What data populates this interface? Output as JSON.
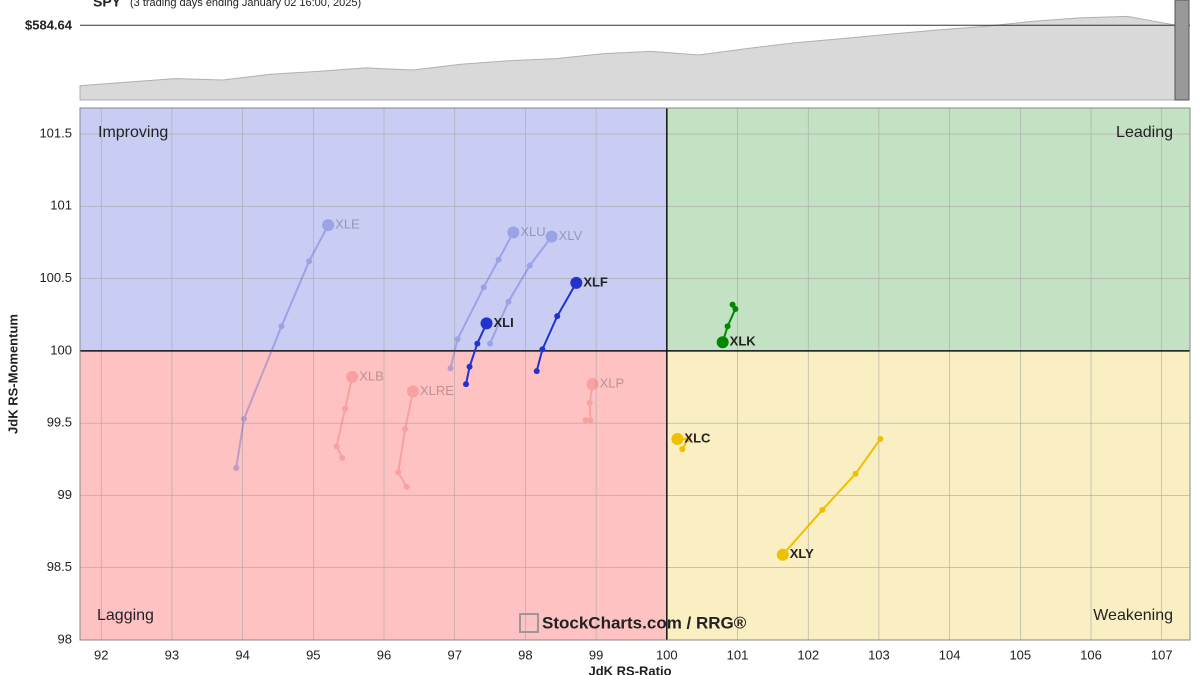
{
  "chart_data": {
    "type": "scatter",
    "header": {
      "symbol": "SPY",
      "period": "(3 trading days ending January 02 16:00, 2025)",
      "price_label": "$584.64",
      "price": 584.64,
      "values": [
        500,
        505,
        510,
        508,
        516,
        520,
        525,
        522,
        530,
        535,
        538,
        545,
        548,
        543,
        552,
        560,
        566,
        572,
        578,
        583,
        590,
        595,
        597,
        585
      ],
      "ylim": [
        480,
        620
      ],
      "color": "#d9d9d9"
    },
    "xlabel": "JdK RS-Ratio",
    "ylabel": "JdK RS-Momentum",
    "xlim": [
      91.7,
      107.4
    ],
    "ylim": [
      98,
      101.68
    ],
    "xticks": [
      92,
      93,
      94,
      95,
      96,
      97,
      98,
      99,
      100,
      101,
      102,
      103,
      104,
      105,
      106,
      107
    ],
    "yticks": [
      98,
      98.5,
      99,
      99.5,
      100,
      100.5,
      101,
      101.5
    ],
    "grid": true,
    "quadrants": [
      {
        "name": "Improving",
        "position": "top-left",
        "color": "#c9cdf3",
        "text_color": "#3a4fd0"
      },
      {
        "name": "Leading",
        "position": "top-right",
        "color": "#c3e2c3",
        "text_color": "#1a8a1a"
      },
      {
        "name": "Lagging",
        "position": "bottom-left",
        "color": "#ffc2c2",
        "text_color": "#e02020"
      },
      {
        "name": "Weakening",
        "position": "bottom-right",
        "color": "#faefc2",
        "text_color": "#e8b800"
      }
    ],
    "watermark": "StockCharts.com / RRG®",
    "series": [
      {
        "name": "XLE",
        "color": "#3344cc",
        "faded": true,
        "x": [
          93.91,
          94.02,
          94.55,
          94.94,
          95.21
        ],
        "values": [
          99.19,
          99.53,
          100.17,
          100.62,
          100.87
        ]
      },
      {
        "name": "XLU",
        "color": "#3344cc",
        "faded": true,
        "x": [
          96.94,
          97.04,
          97.41,
          97.62,
          97.83
        ],
        "values": [
          99.88,
          100.08,
          100.44,
          100.63,
          100.82
        ]
      },
      {
        "name": "XLV",
        "color": "#3344cc",
        "faded": true,
        "x": [
          97.5,
          97.76,
          98.06,
          98.37
        ],
        "values": [
          100.05,
          100.34,
          100.59,
          100.79
        ]
      },
      {
        "name": "XLF",
        "color": "#2233cc",
        "faded": false,
        "x": [
          98.16,
          98.24,
          98.45,
          98.72
        ],
        "values": [
          99.86,
          100.01,
          100.24,
          100.47
        ]
      },
      {
        "name": "XLI",
        "color": "#2233cc",
        "faded": false,
        "x": [
          97.16,
          97.21,
          97.32,
          97.45
        ],
        "values": [
          99.77,
          99.89,
          100.05,
          100.19
        ]
      },
      {
        "name": "XLK",
        "color": "#008800",
        "faded": false,
        "x": [
          100.93,
          100.97,
          100.86,
          100.79
        ],
        "values": [
          100.32,
          100.29,
          100.17,
          100.06
        ]
      },
      {
        "name": "XLB",
        "color": "#ee5555",
        "faded": true,
        "x": [
          95.41,
          95.33,
          95.45,
          95.55
        ],
        "values": [
          99.26,
          99.34,
          99.6,
          99.82
        ]
      },
      {
        "name": "XLRE",
        "color": "#ee5555",
        "faded": true,
        "x": [
          96.32,
          96.2,
          96.3,
          96.41
        ],
        "values": [
          99.06,
          99.16,
          99.46,
          99.72
        ]
      },
      {
        "name": "XLP",
        "color": "#ee5555",
        "faded": true,
        "x": [
          98.85,
          98.92,
          98.91,
          98.95
        ],
        "values": [
          99.52,
          99.52,
          99.64,
          99.77
        ]
      },
      {
        "name": "XLC",
        "color": "#f0c000",
        "faded": false,
        "x": [
          100.22,
          100.3,
          100.15
        ],
        "values": [
          99.32,
          99.39,
          99.39
        ]
      },
      {
        "name": "XLY",
        "color": "#f0c000",
        "faded": false,
        "x": [
          103.02,
          102.67,
          102.2,
          101.64
        ],
        "values": [
          99.39,
          99.15,
          98.9,
          98.59
        ]
      }
    ]
  }
}
